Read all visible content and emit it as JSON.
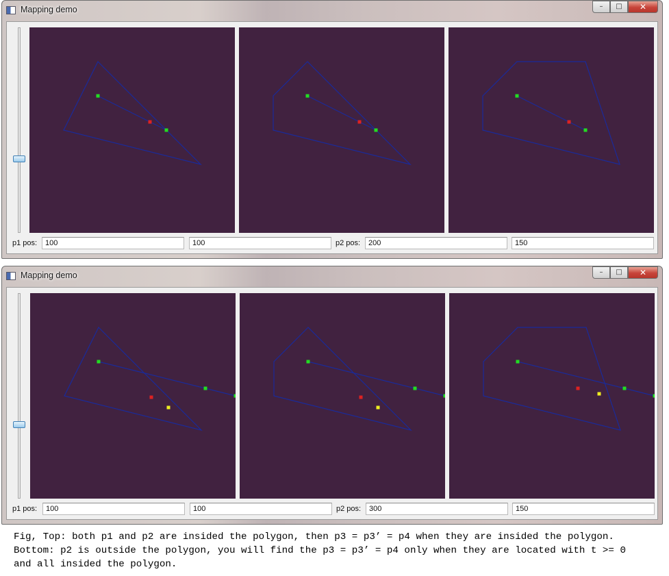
{
  "windows": [
    {
      "title": "Mapping demo",
      "controls": {
        "minimize": "–",
        "maximize": "□",
        "close": "✕"
      },
      "fields": {
        "p1_label": "p1 pos:",
        "p1_x": "100",
        "p1_y": "100",
        "p2_label": "p2 pos:",
        "p2_x": "200",
        "p2_y": "150"
      },
      "panels": [
        {
          "polygon": [
            [
              100,
              50
            ],
            [
              50,
              150
            ],
            [
              250,
              200
            ]
          ],
          "segment": [
            [
              100,
              100
            ],
            [
              200,
              150
            ]
          ],
          "points": [
            {
              "x": 100,
              "y": 100,
              "color": "#22dd22"
            },
            {
              "x": 200,
              "y": 150,
              "color": "#22dd22"
            },
            {
              "x": 176,
              "y": 138,
              "color": "#dd2222"
            }
          ]
        },
        {
          "polygon": [
            [
              100,
              50
            ],
            [
              50,
              100
            ],
            [
              50,
              150
            ],
            [
              250,
              200
            ]
          ],
          "segment": [
            [
              100,
              100
            ],
            [
              200,
              150
            ]
          ],
          "points": [
            {
              "x": 100,
              "y": 100,
              "color": "#22dd22"
            },
            {
              "x": 200,
              "y": 150,
              "color": "#22dd22"
            },
            {
              "x": 176,
              "y": 138,
              "color": "#dd2222"
            }
          ]
        },
        {
          "polygon": [
            [
              100,
              50
            ],
            [
              200,
              50
            ],
            [
              250,
              200
            ],
            [
              50,
              150
            ],
            [
              50,
              100
            ]
          ],
          "segment": [
            [
              100,
              100
            ],
            [
              200,
              150
            ]
          ],
          "points": [
            {
              "x": 100,
              "y": 100,
              "color": "#22dd22"
            },
            {
              "x": 200,
              "y": 150,
              "color": "#22dd22"
            },
            {
              "x": 176,
              "y": 138,
              "color": "#dd2222"
            }
          ]
        }
      ]
    },
    {
      "title": "Mapping demo",
      "controls": {
        "minimize": "–",
        "maximize": "□",
        "close": "✕"
      },
      "fields": {
        "p1_label": "p1 pos:",
        "p1_x": "100",
        "p1_y": "100",
        "p2_label": "p2 pos:",
        "p2_x": "300",
        "p2_y": "150"
      },
      "panels": [
        {
          "polygon": [
            [
              100,
              50
            ],
            [
              50,
              150
            ],
            [
              250,
              200
            ]
          ],
          "segment": [
            [
              100,
              100
            ],
            [
              300,
              150
            ]
          ],
          "points": [
            {
              "x": 100,
              "y": 100,
              "color": "#22dd22"
            },
            {
              "x": 256,
              "y": 139,
              "color": "#22dd22"
            },
            {
              "x": 300,
              "y": 150,
              "color": "#22dd22"
            },
            {
              "x": 177,
              "y": 152,
              "color": "#dd2222"
            },
            {
              "x": 202,
              "y": 167,
              "color": "#eeee22"
            }
          ]
        },
        {
          "polygon": [
            [
              100,
              50
            ],
            [
              50,
              100
            ],
            [
              50,
              150
            ],
            [
              250,
              200
            ]
          ],
          "segment": [
            [
              100,
              100
            ],
            [
              300,
              150
            ]
          ],
          "points": [
            {
              "x": 100,
              "y": 100,
              "color": "#22dd22"
            },
            {
              "x": 256,
              "y": 139,
              "color": "#22dd22"
            },
            {
              "x": 300,
              "y": 150,
              "color": "#22dd22"
            },
            {
              "x": 177,
              "y": 152,
              "color": "#dd2222"
            },
            {
              "x": 202,
              "y": 167,
              "color": "#eeee22"
            }
          ]
        },
        {
          "polygon": [
            [
              100,
              50
            ],
            [
              200,
              50
            ],
            [
              250,
              200
            ],
            [
              50,
              150
            ],
            [
              50,
              100
            ]
          ],
          "segment": [
            [
              100,
              100
            ],
            [
              300,
              150
            ]
          ],
          "points": [
            {
              "x": 100,
              "y": 100,
              "color": "#22dd22"
            },
            {
              "x": 256,
              "y": 139,
              "color": "#22dd22"
            },
            {
              "x": 300,
              "y": 150,
              "color": "#22dd22"
            },
            {
              "x": 188,
              "y": 139,
              "color": "#dd2222"
            },
            {
              "x": 219,
              "y": 147,
              "color": "#eeee22"
            }
          ]
        }
      ]
    }
  ],
  "caption": {
    "line1": "Fig, Top: both p1 and p2 are insided the polygon, then p3 = p3’ = p4 when they are insided the polygon.",
    "line2": "Bottom: p2 is outside the polygon, you will find the p3 = p3’ = p4 only when they are located with t >= 0",
    "line3": "and all insided the polygon."
  },
  "colors": {
    "canvas_bg": "#412240",
    "polygon_stroke": "#1a2a9a",
    "segment_stroke": "#1a2a9a"
  }
}
